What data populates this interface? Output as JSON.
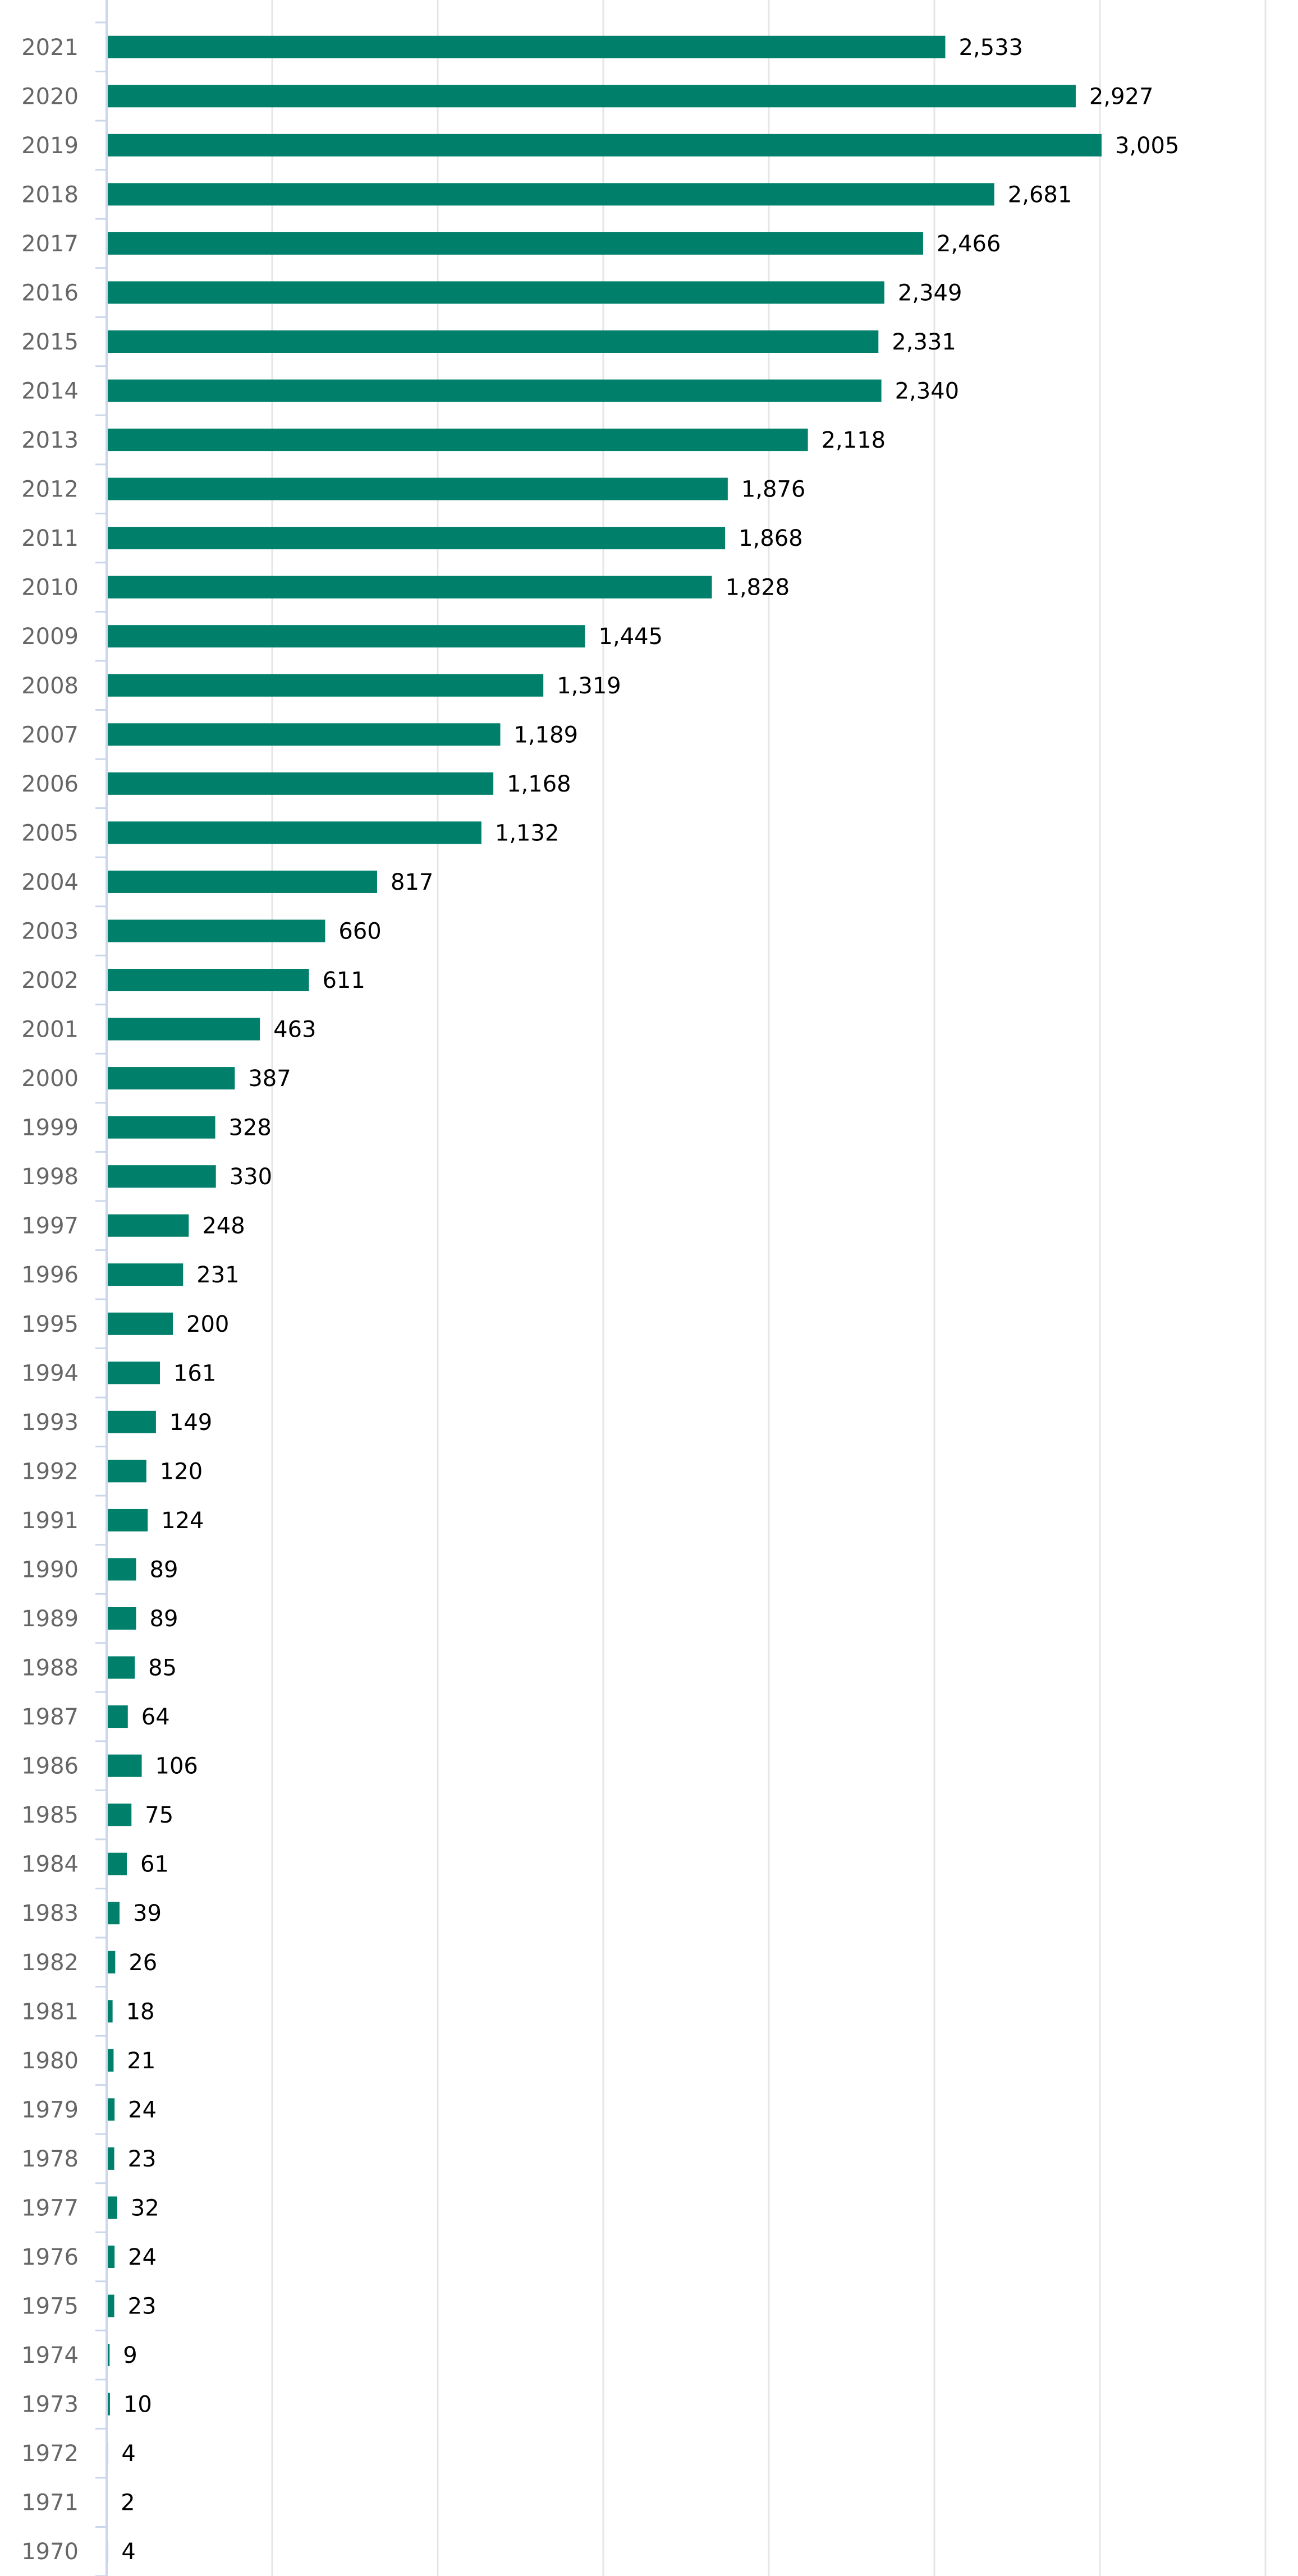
{
  "chart_data": {
    "type": "bar",
    "orientation": "horizontal",
    "title": "",
    "xlabel": "",
    "ylabel": "",
    "xlim": [
      0,
      3500
    ],
    "grid": true,
    "color": "#007f6a",
    "categories": [
      "2021",
      "2020",
      "2019",
      "2018",
      "2017",
      "2016",
      "2015",
      "2014",
      "2013",
      "2012",
      "2011",
      "2010",
      "2009",
      "2008",
      "2007",
      "2006",
      "2005",
      "2004",
      "2003",
      "2002",
      "2001",
      "2000",
      "1999",
      "1998",
      "1997",
      "1996",
      "1995",
      "1994",
      "1993",
      "1992",
      "1991",
      "1990",
      "1989",
      "1988",
      "1987",
      "1986",
      "1985",
      "1984",
      "1983",
      "1982",
      "1981",
      "1980",
      "1979",
      "1978",
      "1977",
      "1976",
      "1975",
      "1974",
      "1973",
      "1972",
      "1971",
      "1970"
    ],
    "values": [
      2533,
      2927,
      3005,
      2681,
      2466,
      2349,
      2331,
      2340,
      2118,
      1876,
      1868,
      1828,
      1445,
      1319,
      1189,
      1168,
      1132,
      817,
      660,
      611,
      463,
      387,
      328,
      330,
      248,
      231,
      200,
      161,
      149,
      120,
      124,
      89,
      89,
      85,
      64,
      106,
      75,
      61,
      39,
      26,
      18,
      21,
      24,
      23,
      32,
      24,
      23,
      9,
      10,
      4,
      2,
      4
    ],
    "value_labels": [
      "2,533",
      "2,927",
      "3,005",
      "2,681",
      "2,466",
      "2,349",
      "2,331",
      "2,340",
      "2,118",
      "1,876",
      "1,868",
      "1,828",
      "1,445",
      "1,319",
      "1,189",
      "1,168",
      "1,132",
      "817",
      "660",
      "611",
      "463",
      "387",
      "328",
      "330",
      "248",
      "231",
      "200",
      "161",
      "149",
      "120",
      "124",
      "89",
      "89",
      "85",
      "64",
      "106",
      "75",
      "61",
      "39",
      "26",
      "18",
      "21",
      "24",
      "23",
      "32",
      "24",
      "23",
      "9",
      "10",
      "4",
      "2",
      "4"
    ]
  }
}
